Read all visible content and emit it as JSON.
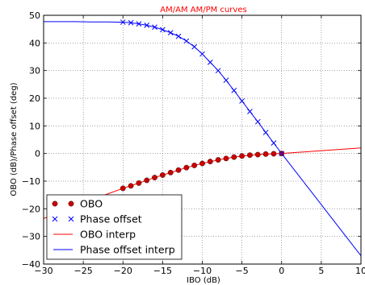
{
  "chart_data": {
    "type": "line",
    "title": "AM/AM AM/PM curves",
    "title_color": "#ff0000",
    "xlabel": "IBO (dB)",
    "ylabel": "OBO (dB)/Phase offset (deg)",
    "xlim": [
      -30,
      10
    ],
    "ylim": [
      -40,
      50
    ],
    "xticks": [
      -30,
      -25,
      -20,
      -15,
      -10,
      -5,
      0,
      5,
      10
    ],
    "xtick_labels": [
      "−30",
      "−25",
      "−20",
      "−15",
      "−10",
      "−5",
      "0",
      "5",
      "10"
    ],
    "yticks": [
      -40,
      -30,
      -20,
      -10,
      0,
      10,
      20,
      30,
      40,
      50
    ],
    "ytick_labels": [
      "−40",
      "−30",
      "−20",
      "−10",
      "0",
      "10",
      "20",
      "30",
      "40",
      "50"
    ],
    "grid": true,
    "legend_position": "lower-left",
    "series": [
      {
        "name": "OBO",
        "style": "markers-dot",
        "color": "#cc0000",
        "x": [
          -20,
          -19,
          -18,
          -17,
          -16,
          -15,
          -14,
          -13,
          -12,
          -11,
          -10,
          -9,
          -8,
          -7,
          -6,
          -5,
          -4,
          -3,
          -2,
          -1,
          0
        ],
        "y": [
          -12.6,
          -11.7,
          -10.7,
          -9.7,
          -8.7,
          -7.8,
          -6.9,
          -6.0,
          -5.1,
          -4.3,
          -3.6,
          -2.9,
          -2.3,
          -1.8,
          -1.3,
          -0.9,
          -0.6,
          -0.4,
          -0.2,
          -0.1,
          0.0
        ]
      },
      {
        "name": "Phase offset",
        "style": "markers-x",
        "color": "#0000ff",
        "x": [
          -20,
          -19,
          -18,
          -17,
          -16,
          -15,
          -14,
          -13,
          -12,
          -11,
          -10,
          -9,
          -8,
          -7,
          -6,
          -5,
          -4,
          -3,
          -2,
          -1,
          0
        ],
        "y": [
          47.5,
          47.3,
          46.9,
          46.4,
          45.7,
          44.8,
          43.7,
          42.4,
          40.7,
          38.6,
          36.0,
          33.0,
          30.0,
          26.5,
          22.8,
          19.0,
          15.2,
          11.5,
          7.6,
          3.8,
          0.0
        ]
      },
      {
        "name": "OBO interp",
        "style": "line",
        "color": "#ff0000",
        "x": [
          -30,
          -28,
          -26,
          -24,
          -22,
          -20,
          -18,
          -16,
          -14,
          -12,
          -10,
          -8,
          -6,
          -4,
          -2,
          0,
          2,
          4,
          6,
          8,
          10
        ],
        "y": [
          -23.5,
          -21.3,
          -19.1,
          -16.8,
          -14.7,
          -12.6,
          -10.7,
          -8.7,
          -6.9,
          -5.1,
          -3.6,
          -2.3,
          -1.3,
          -0.6,
          -0.2,
          0.0,
          0.4,
          0.8,
          1.2,
          1.6,
          2.0
        ]
      },
      {
        "name": "Phase offset interp",
        "style": "line",
        "color": "#0000ff",
        "x": [
          -30,
          -28,
          -26,
          -24,
          -22,
          -20,
          -19,
          -18,
          -17,
          -16,
          -15,
          -14,
          -13,
          -12,
          -11,
          -10,
          -9,
          -8,
          -7,
          -6,
          -5,
          -4,
          -3,
          -2,
          -1,
          0,
          2,
          4,
          6,
          8,
          10
        ],
        "y": [
          47.7,
          47.7,
          47.7,
          47.6,
          47.6,
          47.5,
          47.3,
          46.9,
          46.4,
          45.7,
          44.8,
          43.7,
          42.4,
          40.7,
          38.6,
          36.0,
          33.0,
          30.0,
          26.5,
          22.8,
          19.0,
          15.2,
          11.5,
          7.6,
          3.8,
          0.0,
          -7.4,
          -14.8,
          -22.2,
          -29.6,
          -37.0
        ]
      }
    ]
  }
}
